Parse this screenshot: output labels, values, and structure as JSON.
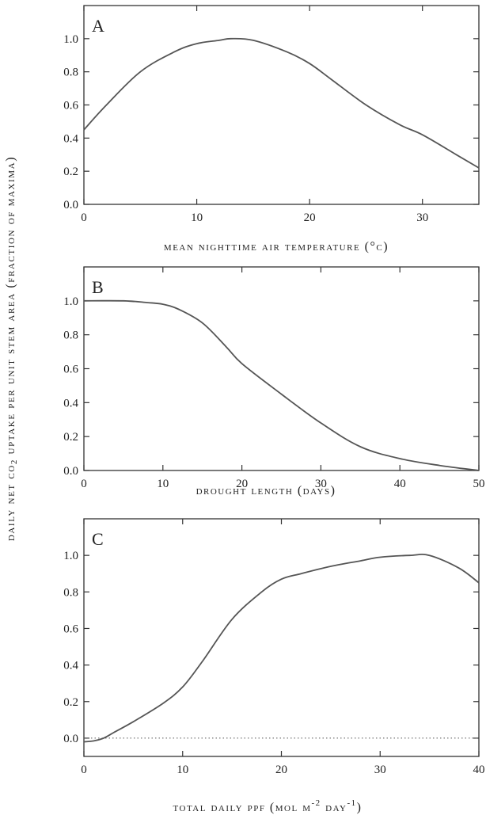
{
  "ylabel": {
    "prefix": "daily net co",
    "sub": "2",
    "suffix": " uptake per unit stem area (fraction of maxima)"
  },
  "chart_data": [
    {
      "type": "line",
      "panel": "A",
      "xlabel": "mean nighttime air temperature (°c)",
      "xlim": [
        0,
        35
      ],
      "ylim": [
        0,
        1.2
      ],
      "xticks": [
        0,
        10,
        20,
        30
      ],
      "yticks": [
        0.0,
        0.2,
        0.4,
        0.6,
        0.8,
        1.0
      ],
      "x": [
        0,
        2,
        5,
        8,
        10,
        12,
        13,
        15,
        18,
        20,
        22,
        25,
        28,
        30,
        33,
        35
      ],
      "y": [
        0.45,
        0.6,
        0.8,
        0.92,
        0.97,
        0.99,
        1.0,
        0.99,
        0.92,
        0.85,
        0.75,
        0.6,
        0.48,
        0.42,
        0.3,
        0.22
      ]
    },
    {
      "type": "line",
      "panel": "B",
      "xlabel": "drought length (days)",
      "xlim": [
        0,
        50
      ],
      "ylim": [
        0,
        1.2
      ],
      "xticks": [
        0,
        10,
        20,
        30,
        40,
        50
      ],
      "yticks": [
        0.0,
        0.2,
        0.4,
        0.6,
        0.8,
        1.0
      ],
      "x": [
        0,
        5,
        8,
        10,
        12,
        15,
        18,
        20,
        25,
        30,
        35,
        40,
        45,
        50
      ],
      "y": [
        1.0,
        1.0,
        0.99,
        0.98,
        0.95,
        0.87,
        0.73,
        0.63,
        0.45,
        0.28,
        0.14,
        0.07,
        0.03,
        0.0
      ]
    },
    {
      "type": "line",
      "panel": "C",
      "xlabel_main": "total daily ppf (mol m",
      "xlabel_sup1": "-2",
      "xlabel_mid": " day",
      "xlabel_sup2": "-1",
      "xlabel_end": ")",
      "xlim": [
        0,
        40
      ],
      "ylim": [
        -0.1,
        1.2
      ],
      "xticks": [
        0,
        10,
        20,
        30,
        40
      ],
      "yticks": [
        0.0,
        0.2,
        0.4,
        0.6,
        0.8,
        1.0
      ],
      "zero_line": "dotted",
      "x": [
        0,
        1,
        2,
        3,
        5,
        8,
        10,
        12,
        15,
        18,
        20,
        22,
        25,
        28,
        30,
        33,
        35,
        38,
        40
      ],
      "y": [
        -0.02,
        -0.015,
        0.0,
        0.03,
        0.09,
        0.19,
        0.28,
        0.42,
        0.65,
        0.8,
        0.87,
        0.9,
        0.94,
        0.97,
        0.99,
        1.0,
        1.0,
        0.93,
        0.85
      ]
    }
  ]
}
